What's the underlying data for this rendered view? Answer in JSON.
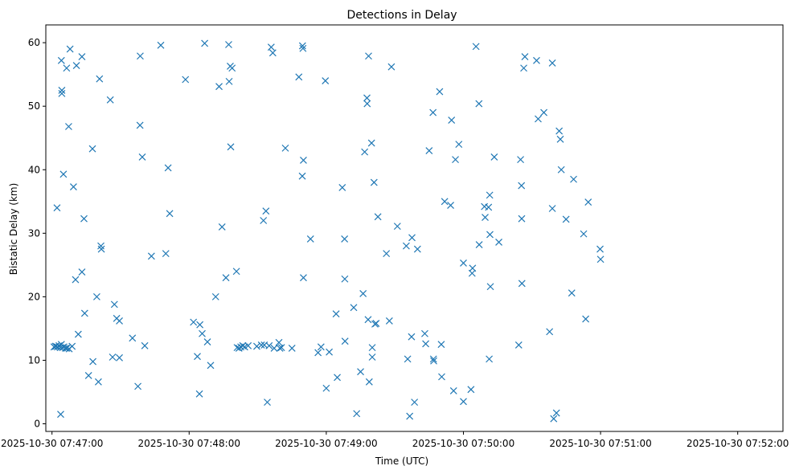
{
  "chart_data": {
    "type": "scatter",
    "title": "Detections in Delay",
    "xlabel": "Time (UTC)",
    "ylabel": "Bistatic Delay (km)",
    "x_ticks": [
      "2025-10-30 07:47:00",
      "2025-10-30 07:48:00",
      "2025-10-30 07:49:00",
      "2025-10-30 07:50:00",
      "2025-10-30 07:51:00",
      "2025-10-30 07:52:00"
    ],
    "y_ticks": [
      "0",
      "10",
      "20",
      "30",
      "40",
      "50",
      "60"
    ],
    "xlim": [
      "2025-10-30 07:46:57.3",
      "2025-10-30 07:52:19.8"
    ],
    "ylim": [
      -1.2,
      62.8
    ],
    "grid": false,
    "marker": "x",
    "color": "#1f77b4",
    "series": [
      {
        "points": [
          [
            "07:47:02.2",
            34.0
          ],
          [
            "07:47:03.8",
            1.5
          ],
          [
            "07:47:04.1",
            57.2
          ],
          [
            "07:47:04.3",
            52.5
          ],
          [
            "07:47:04.3",
            52.0
          ],
          [
            "07:47:05.0",
            39.3
          ],
          [
            "07:47:06.4",
            56.0
          ],
          [
            "07:47:07.3",
            46.8
          ],
          [
            "07:47:07.9",
            59.0
          ],
          [
            "07:47:09.4",
            37.3
          ],
          [
            "07:47:10.3",
            22.7
          ],
          [
            "07:47:10.7",
            56.4
          ],
          [
            "07:47:11.5",
            14.1
          ],
          [
            "07:47:13.1",
            23.9
          ],
          [
            "07:47:13.1",
            57.8
          ],
          [
            "07:47:14.0",
            32.3
          ],
          [
            "07:47:14.3",
            17.4
          ],
          [
            "07:47:16.0",
            7.6
          ],
          [
            "07:47:17.7",
            43.3
          ],
          [
            "07:47:17.9",
            9.8
          ],
          [
            "07:47:19.6",
            20.0
          ],
          [
            "07:47:20.3",
            6.6
          ],
          [
            "07:47:20.8",
            54.3
          ],
          [
            "07:47:21.4",
            28.0
          ],
          [
            "07:47:21.6",
            27.5
          ],
          [
            "07:47:25.5",
            51.0
          ],
          [
            "07:47:26.5",
            10.5
          ],
          [
            "07:47:27.3",
            18.8
          ],
          [
            "07:47:28.3",
            16.6
          ],
          [
            "07:47:29.5",
            10.4
          ],
          [
            "07:47:29.5",
            16.2
          ],
          [
            "07:47:35.2",
            13.5
          ],
          [
            "07:47:37.6",
            5.9
          ],
          [
            "07:47:38.5",
            47.0
          ],
          [
            "07:47:38.6",
            57.9
          ],
          [
            "07:47:39.5",
            42.0
          ],
          [
            "07:47:40.6",
            12.3
          ],
          [
            "07:47:43.5",
            26.4
          ],
          [
            "07:47:47.6",
            59.6
          ],
          [
            "07:47:49.8",
            26.8
          ],
          [
            "07:47:50.8",
            40.3
          ],
          [
            "07:47:51.5",
            33.1
          ],
          [
            "07:47:58.4",
            54.2
          ],
          [
            "07:48:01.9",
            16.0
          ],
          [
            "07:48:03.6",
            10.6
          ],
          [
            "07:48:04.5",
            4.7
          ],
          [
            "07:48:04.7",
            15.6
          ],
          [
            "07:48:05.7",
            14.2
          ],
          [
            "07:48:06.8",
            59.9
          ],
          [
            "07:48:08.0",
            12.9
          ],
          [
            "07:48:09.4",
            9.2
          ],
          [
            "07:48:11.6",
            20.0
          ],
          [
            "07:48:13.1",
            53.1
          ],
          [
            "07:48:14.4",
            31.0
          ],
          [
            "07:48:16.1",
            23.0
          ],
          [
            "07:48:17.3",
            59.7
          ],
          [
            "07:48:17.5",
            53.9
          ],
          [
            "07:48:18.0",
            56.3
          ],
          [
            "07:48:18.8",
            56.0
          ],
          [
            "07:48:18.2",
            43.6
          ],
          [
            "07:48:20.7",
            24.0
          ],
          [
            "07:48:32.5",
            32.0
          ],
          [
            "07:48:33.6",
            33.5
          ],
          [
            "07:48:34.2",
            3.4
          ],
          [
            "07:48:35.9",
            59.3
          ],
          [
            "07:48:36.6",
            58.4
          ],
          [
            "07:48:39.3",
            12.8
          ],
          [
            "07:48:42.1",
            43.4
          ],
          [
            "07:48:48.0",
            54.6
          ],
          [
            "07:48:49.5",
            39.0
          ],
          [
            "07:48:50.0",
            41.5
          ],
          [
            "07:48:50.0",
            23.0
          ],
          [
            "07:48:49.6",
            59.5
          ],
          [
            "07:48:49.8",
            59.1
          ],
          [
            "07:48:53.1",
            29.1
          ],
          [
            "07:48:56.4",
            11.2
          ],
          [
            "07:48:57.7",
            12.1
          ],
          [
            "07:48:59.6",
            54.0
          ],
          [
            "07:49:01.3",
            11.3
          ],
          [
            "07:49:00.0",
            5.6
          ],
          [
            "07:49:04.3",
            17.3
          ],
          [
            "07:49:04.8",
            7.3
          ],
          [
            "07:49:07.0",
            37.2
          ],
          [
            "07:49:08.0",
            29.1
          ],
          [
            "07:49:08.1",
            22.8
          ],
          [
            "07:49:08.2",
            13.0
          ],
          [
            "07:49:12.0",
            18.3
          ],
          [
            "07:49:13.3",
            1.6
          ],
          [
            "07:49:15.0",
            8.2
          ],
          [
            "07:49:16.1",
            20.5
          ],
          [
            "07:49:16.8",
            42.8
          ],
          [
            "07:49:17.8",
            51.3
          ],
          [
            "07:49:17.9",
            50.4
          ],
          [
            "07:49:18.5",
            57.9
          ],
          [
            "07:49:18.3",
            16.4
          ],
          [
            "07:49:18.8",
            6.6
          ],
          [
            "07:49:19.8",
            44.2
          ],
          [
            "07:49:20.1",
            10.5
          ],
          [
            "07:49:20.1",
            12.0
          ],
          [
            "07:49:20.9",
            38.0
          ],
          [
            "07:49:21.3",
            15.7
          ],
          [
            "07:49:21.8",
            15.8
          ],
          [
            "07:49:22.6",
            32.6
          ],
          [
            "07:49:26.3",
            26.8
          ],
          [
            "07:49:27.6",
            16.2
          ],
          [
            "07:49:28.5",
            56.2
          ],
          [
            "07:49:31.1",
            31.1
          ],
          [
            "07:49:35.0",
            28.0
          ],
          [
            "07:49:35.6",
            10.2
          ],
          [
            "07:49:36.5",
            1.2
          ],
          [
            "07:49:37.3",
            13.7
          ],
          [
            "07:49:37.5",
            29.3
          ],
          [
            "07:49:38.6",
            3.4
          ],
          [
            "07:49:39.9",
            27.5
          ],
          [
            "07:49:43.1",
            14.2
          ],
          [
            "07:49:43.5",
            12.6
          ],
          [
            "07:49:45.0",
            43.0
          ],
          [
            "07:49:46.7",
            49.0
          ],
          [
            "07:49:46.9",
            10.2
          ],
          [
            "07:49:47.0",
            9.9
          ],
          [
            "07:49:49.6",
            52.3
          ],
          [
            "07:49:50.3",
            12.5
          ],
          [
            "07:49:50.5",
            7.4
          ],
          [
            "07:49:51.8",
            35.0
          ],
          [
            "07:49:54.4",
            34.4
          ],
          [
            "07:49:54.8",
            47.8
          ],
          [
            "07:49:55.7",
            5.2
          ],
          [
            "07:49:56.5",
            41.6
          ],
          [
            "07:49:58.0",
            44.0
          ],
          [
            "07:50:00.0",
            3.5
          ],
          [
            "07:50:00.0",
            25.3
          ],
          [
            "07:50:03.3",
            5.4
          ],
          [
            "07:50:03.8",
            23.7
          ],
          [
            "07:50:04.0",
            24.5
          ],
          [
            "07:50:05.5",
            59.4
          ],
          [
            "07:50:06.8",
            50.4
          ],
          [
            "07:50:06.9",
            28.2
          ],
          [
            "07:50:09.2",
            34.2
          ],
          [
            "07:50:09.5",
            32.5
          ],
          [
            "07:50:11.0",
            34.1
          ],
          [
            "07:50:11.5",
            36.0
          ],
          [
            "07:50:11.6",
            29.8
          ],
          [
            "07:50:11.8",
            21.6
          ],
          [
            "07:50:11.3",
            10.2
          ],
          [
            "07:50:13.5",
            42.0
          ],
          [
            "07:50:15.5",
            28.6
          ],
          [
            "07:50:24.2",
            12.4
          ],
          [
            "07:50:25.0",
            41.6
          ],
          [
            "07:50:25.4",
            37.5
          ],
          [
            "07:50:25.5",
            32.3
          ],
          [
            "07:50:25.6",
            22.1
          ],
          [
            "07:50:26.4",
            56.0
          ],
          [
            "07:50:26.9",
            57.8
          ],
          [
            "07:50:32.0",
            57.2
          ],
          [
            "07:50:32.7",
            48.0
          ],
          [
            "07:50:35.2",
            49.0
          ],
          [
            "07:50:37.7",
            14.5
          ],
          [
            "07:50:38.9",
            33.9
          ],
          [
            "07:50:38.9",
            56.8
          ],
          [
            "07:50:39.5",
            0.8
          ],
          [
            "07:50:40.7",
            1.7
          ],
          [
            "07:50:41.9",
            46.1
          ],
          [
            "07:50:42.4",
            44.8
          ],
          [
            "07:50:42.8",
            40.0
          ],
          [
            "07:50:44.9",
            32.2
          ],
          [
            "07:50:47.4",
            20.6
          ],
          [
            "07:50:48.2",
            38.5
          ],
          [
            "07:50:52.6",
            29.9
          ],
          [
            "07:50:53.5",
            16.5
          ],
          [
            "07:50:54.6",
            34.9
          ],
          [
            "07:50:59.8",
            27.5
          ],
          [
            "07:51:00.0",
            25.9
          ],
          [
            "07:47:00.9",
            12.1
          ],
          [
            "07:47:01.7",
            12.2
          ],
          [
            "07:47:02.4",
            12.1
          ],
          [
            "07:47:03.1",
            12.3
          ],
          [
            "07:47:03.7",
            12.0
          ],
          [
            "07:47:04.1",
            12.5
          ],
          [
            "07:47:04.6",
            12.0
          ],
          [
            "07:47:05.2",
            12.1
          ],
          [
            "07:47:05.9",
            11.9
          ],
          [
            "07:47:06.5",
            11.9
          ],
          [
            "07:47:07.5",
            11.8
          ],
          [
            "07:47:08.8",
            12.2
          ],
          [
            "07:48:21.0",
            12.0
          ],
          [
            "07:48:21.8",
            11.9
          ],
          [
            "07:48:22.6",
            12.1
          ],
          [
            "07:48:23.5",
            12.3
          ],
          [
            "07:48:24.3",
            12.1
          ],
          [
            "07:48:25.8",
            12.3
          ],
          [
            "07:48:29.6",
            12.2
          ],
          [
            "07:48:31.6",
            12.4
          ],
          [
            "07:48:32.9",
            12.4
          ],
          [
            "07:48:35.0",
            12.3
          ],
          [
            "07:48:37.2",
            11.9
          ],
          [
            "07:48:39.7",
            11.9
          ],
          [
            "07:48:40.4",
            12.0
          ],
          [
            "07:48:45.0",
            11.9
          ],
          [
            "07:47:01.5",
            12.2
          ]
        ]
      }
    ]
  }
}
